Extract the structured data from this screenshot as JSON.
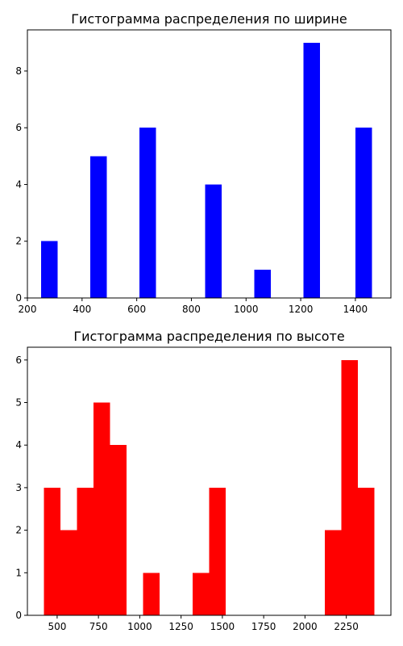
{
  "chart_data": [
    {
      "type": "bar",
      "title": "Гистограмма распределения по ширине",
      "xlabel": "",
      "ylabel": "",
      "color": "#0000ff",
      "bins": [
        {
          "x0": 250,
          "x1": 310,
          "value": 2
        },
        {
          "x0": 430,
          "x1": 490,
          "value": 5
        },
        {
          "x0": 610,
          "x1": 670,
          "value": 6
        },
        {
          "x0": 850,
          "x1": 910,
          "value": 4
        },
        {
          "x0": 1030,
          "x1": 1090,
          "value": 1
        },
        {
          "x0": 1210,
          "x1": 1270,
          "value": 9
        },
        {
          "x0": 1400,
          "x1": 1460,
          "value": 6
        }
      ],
      "xlim": [
        200,
        1530
      ],
      "ylim": [
        0,
        9.45
      ],
      "xticks": [
        "200",
        "400",
        "600",
        "800",
        "1000",
        "1200",
        "1400"
      ],
      "xtick_values": [
        200,
        400,
        600,
        800,
        1000,
        1200,
        1400
      ],
      "yticks": [
        "0",
        "2",
        "4",
        "6",
        "8"
      ],
      "ytick_values": [
        0,
        2,
        4,
        6,
        8
      ],
      "grid": false
    },
    {
      "type": "bar",
      "title": "Гистограмма распределения по высоте",
      "xlabel": "",
      "ylabel": "",
      "color": "#ff0000",
      "bins": [
        {
          "x0": 420,
          "x1": 520,
          "value": 3
        },
        {
          "x0": 520,
          "x1": 620,
          "value": 2
        },
        {
          "x0": 620,
          "x1": 720,
          "value": 3
        },
        {
          "x0": 720,
          "x1": 820,
          "value": 5
        },
        {
          "x0": 820,
          "x1": 920,
          "value": 4
        },
        {
          "x0": 920,
          "x1": 1020,
          "value": 0
        },
        {
          "x0": 1020,
          "x1": 1120,
          "value": 1
        },
        {
          "x0": 1120,
          "x1": 1220,
          "value": 0
        },
        {
          "x0": 1220,
          "x1": 1320,
          "value": 0
        },
        {
          "x0": 1320,
          "x1": 1420,
          "value": 1
        },
        {
          "x0": 1420,
          "x1": 1520,
          "value": 3
        },
        {
          "x0": 1520,
          "x1": 1620,
          "value": 0
        },
        {
          "x0": 1620,
          "x1": 1720,
          "value": 0
        },
        {
          "x0": 1720,
          "x1": 1820,
          "value": 0
        },
        {
          "x0": 1820,
          "x1": 1920,
          "value": 0
        },
        {
          "x0": 1920,
          "x1": 2020,
          "value": 0
        },
        {
          "x0": 2020,
          "x1": 2120,
          "value": 0
        },
        {
          "x0": 2120,
          "x1": 2220,
          "value": 2
        },
        {
          "x0": 2220,
          "x1": 2320,
          "value": 6
        },
        {
          "x0": 2320,
          "x1": 2420,
          "value": 3
        }
      ],
      "xlim": [
        320,
        2520
      ],
      "ylim": [
        0,
        6.3
      ],
      "xticks": [
        "500",
        "750",
        "1000",
        "1250",
        "1500",
        "1750",
        "2000",
        "2250"
      ],
      "xtick_values": [
        500,
        750,
        1000,
        1250,
        1500,
        1750,
        2000,
        2250
      ],
      "yticks": [
        "0",
        "1",
        "2",
        "3",
        "4",
        "5",
        "6"
      ],
      "ytick_values": [
        0,
        1,
        2,
        3,
        4,
        5,
        6
      ],
      "grid": false
    }
  ]
}
